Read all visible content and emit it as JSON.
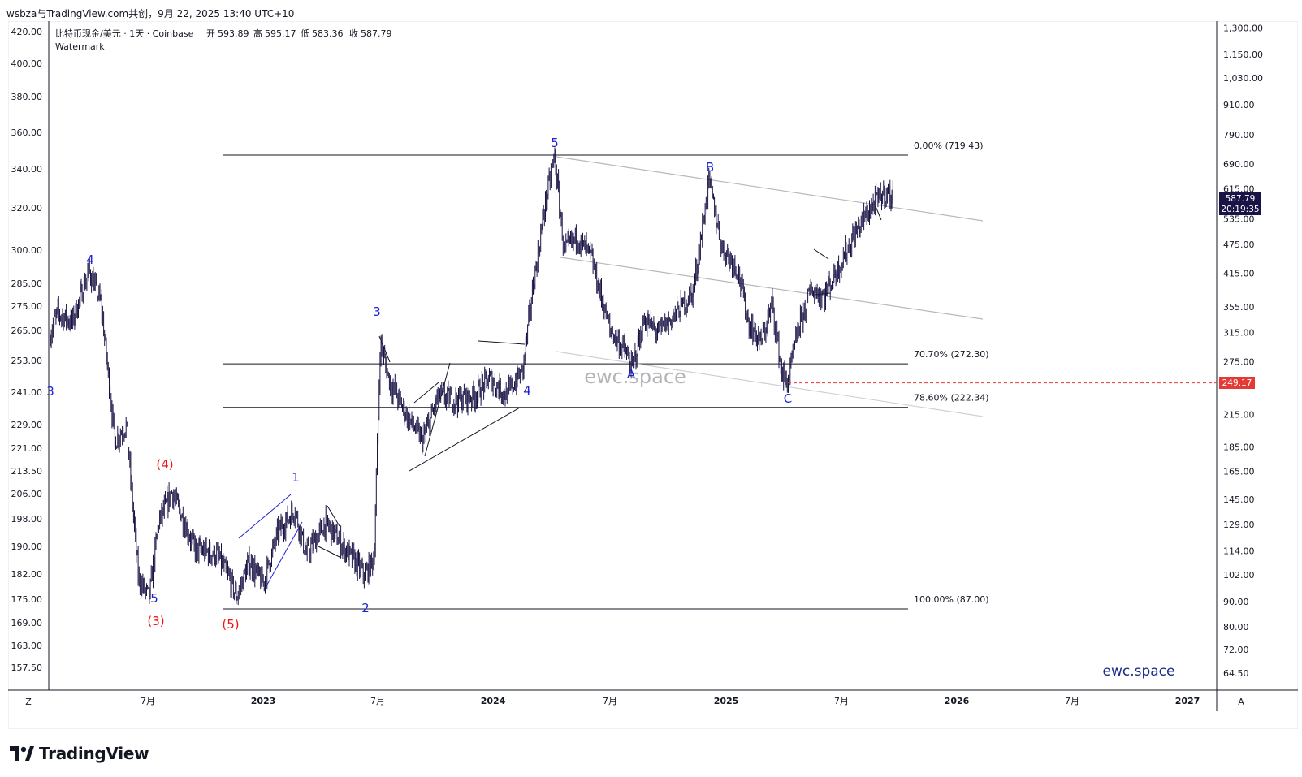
{
  "header": {
    "publish_line": "wsbza与TradingView.com共创，9月 22, 2025 13:40 UTC+10"
  },
  "legend": {
    "symbol_line": "比特币现金/美元 · 1天 · Coinbase",
    "open_label": "开",
    "open_value": "593.89",
    "high_label": "高",
    "high_value": "595.17",
    "low_label": "低",
    "low_value": "583.36",
    "close_label": "收",
    "close_value": "587.79",
    "watermark_label": "Watermark"
  },
  "colors": {
    "candle": "#1a1446",
    "wave_blue": "#1e22d6",
    "wave_red": "#ee1515",
    "fib_line": "#131722",
    "channel": "#b8b8b8",
    "price_badge": "#1a1446",
    "dashed_red": "#e53935"
  },
  "footer": {
    "brand": "TradingView"
  },
  "watermark_texts": [
    "ewc.space",
    "ewc.space"
  ],
  "chart_data": {
    "type": "candlestick",
    "left_axis": {
      "scale": "log",
      "ticks": [
        "420.00",
        "400.00",
        "380.00",
        "360.00",
        "340.00",
        "320.00",
        "300.00",
        "285.00",
        "275.00",
        "265.00",
        "253.00",
        "241.00",
        "229.00",
        "221.00",
        "213.50",
        "206.00",
        "198.00",
        "190.00",
        "182.00",
        "175.00",
        "169.00",
        "163.00",
        "157.50"
      ]
    },
    "right_axis": {
      "scale": "log",
      "range": [
        60,
        1350
      ],
      "ticks": [
        "1,300.00",
        "1,150.00",
        "1,030.00",
        "910.00",
        "790.00",
        "690.00",
        "615.00",
        "535.00",
        "475.00",
        "415.00",
        "355.00",
        "315.00",
        "275.00",
        "215.00",
        "185.00",
        "165.00",
        "145.00",
        "129.00",
        "114.00",
        "102.00",
        "90.00",
        "80.00",
        "72.00",
        "64.50"
      ]
    },
    "x_axis": {
      "ticks": [
        "7月",
        "2023",
        "7月",
        "2024",
        "7月",
        "2025",
        "7月",
        "2026",
        "7月",
        "2027"
      ],
      "corner_left": "Z",
      "corner_right": "A"
    },
    "last_price": {
      "value": 587.79,
      "label": "587.79",
      "countdown": "20:19:35"
    },
    "alert_price": {
      "value": 249.17,
      "label": "249.17"
    },
    "fib_levels": [
      {
        "label": "0.00% (719.43)",
        "value": 719.43
      },
      {
        "label": "70.70% (272.30)",
        "value": 272.3
      },
      {
        "label": "78.60% (222.34)",
        "value": 222.34
      },
      {
        "label": "100.00% (87.00)",
        "value": 87.0
      }
    ],
    "price_path": [
      [
        "2022-01-25",
        300
      ],
      [
        "2022-02-10",
        345
      ],
      [
        "2022-03-05",
        330
      ],
      [
        "2022-04-01",
        420
      ],
      [
        "2022-04-20",
        360
      ],
      [
        "2022-05-12",
        190
      ],
      [
        "2022-05-30",
        205
      ],
      [
        "2022-06-18",
        100
      ],
      [
        "2022-07-05",
        92
      ],
      [
        "2022-07-20",
        130
      ],
      [
        "2022-08-10",
        150
      ],
      [
        "2022-09-15",
        115
      ],
      [
        "2022-10-20",
        112
      ],
      [
        "2022-11-09",
        100
      ],
      [
        "2022-11-20",
        92
      ],
      [
        "2022-12-10",
        108
      ],
      [
        "2023-01-01",
        98
      ],
      [
        "2023-01-25",
        125
      ],
      [
        "2023-02-20",
        138
      ],
      [
        "2023-03-10",
        112
      ],
      [
        "2023-04-10",
        130
      ],
      [
        "2023-05-10",
        115
      ],
      [
        "2023-06-10",
        102
      ],
      [
        "2023-06-25",
        110
      ],
      [
        "2023-07-01",
        200
      ],
      [
        "2023-07-05",
        300
      ],
      [
        "2023-07-20",
        250
      ],
      [
        "2023-08-15",
        215
      ],
      [
        "2023-09-10",
        190
      ],
      [
        "2023-10-05",
        235
      ],
      [
        "2023-11-01",
        230
      ],
      [
        "2023-12-01",
        235
      ],
      [
        "2023-12-25",
        255
      ],
      [
        "2024-01-20",
        235
      ],
      [
        "2024-02-15",
        265
      ],
      [
        "2024-03-01",
        380
      ],
      [
        "2024-03-20",
        560
      ],
      [
        "2024-04-05",
        719
      ],
      [
        "2024-04-20",
        460
      ],
      [
        "2024-05-10",
        490
      ],
      [
        "2024-06-01",
        450
      ],
      [
        "2024-07-01",
        320
      ],
      [
        "2024-07-25",
        290
      ],
      [
        "2024-08-05",
        265
      ],
      [
        "2024-08-25",
        335
      ],
      [
        "2024-09-15",
        315
      ],
      [
        "2024-10-15",
        345
      ],
      [
        "2024-11-10",
        380
      ],
      [
        "2024-12-05",
        640
      ],
      [
        "2024-12-25",
        470
      ],
      [
        "2025-01-20",
        420
      ],
      [
        "2025-02-05",
        330
      ],
      [
        "2025-02-25",
        300
      ],
      [
        "2025-03-15",
        360
      ],
      [
        "2025-03-30",
        260
      ],
      [
        "2025-04-08",
        249
      ],
      [
        "2025-04-25",
        320
      ],
      [
        "2025-05-15",
        385
      ],
      [
        "2025-06-05",
        375
      ],
      [
        "2025-06-25",
        420
      ],
      [
        "2025-07-20",
        490
      ],
      [
        "2025-08-10",
        545
      ],
      [
        "2025-08-25",
        580
      ],
      [
        "2025-09-10",
        605
      ],
      [
        "2025-09-22",
        587.79
      ]
    ],
    "wave_labels": [
      {
        "text": "4",
        "style": "blue"
      },
      {
        "text": "5",
        "style": "blue"
      },
      {
        "text": "(3)",
        "style": "red"
      },
      {
        "text": "(4)",
        "style": "red"
      },
      {
        "text": "(5)",
        "style": "red"
      },
      {
        "text": "1",
        "style": "blue"
      },
      {
        "text": "2",
        "style": "blue"
      },
      {
        "text": "3",
        "style": "blue"
      },
      {
        "text": "4",
        "style": "blue"
      },
      {
        "text": "5",
        "style": "blue"
      },
      {
        "text": "A",
        "style": "blue"
      },
      {
        "text": "B",
        "style": "blue"
      },
      {
        "text": "C",
        "style": "blue"
      },
      {
        "text": "3",
        "style": "blue"
      }
    ]
  }
}
